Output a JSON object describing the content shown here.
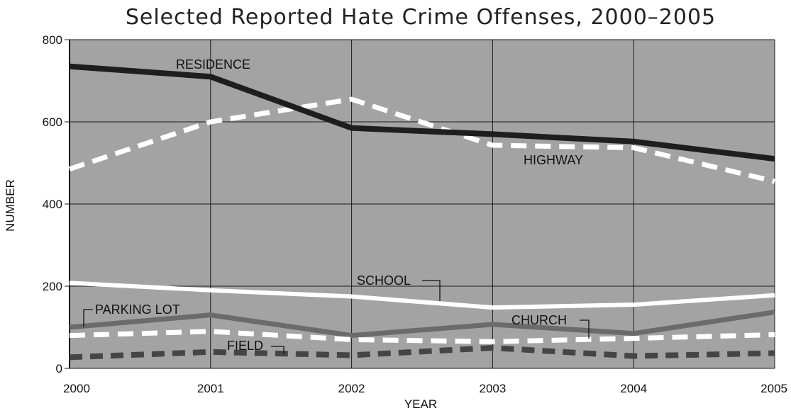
{
  "chart_data": {
    "type": "line",
    "title": "Selected Reported Hate Crime Offenses, 2000–2005",
    "xlabel": "YEAR",
    "ylabel": "NUMBER",
    "x": [
      2000,
      2001,
      2002,
      2003,
      2004,
      2005
    ],
    "xlim": [
      2000,
      2005
    ],
    "ylim": [
      0,
      800
    ],
    "yticks": [
      0,
      200,
      400,
      600,
      800
    ],
    "grid": true,
    "legend": "none",
    "series": [
      {
        "name": "RESIDENCE",
        "values": [
          735,
          710,
          585,
          570,
          552,
          510
        ],
        "color": "#1e1e1e",
        "style": "solid"
      },
      {
        "name": "HIGHWAY",
        "values": [
          485,
          600,
          655,
          543,
          537,
          455
        ],
        "color": "#ffffff",
        "style": "dashed"
      },
      {
        "name": "SCHOOL",
        "values": [
          208,
          190,
          175,
          148,
          155,
          178
        ],
        "color": "#ffffff",
        "style": "solid"
      },
      {
        "name": "PARKING LOT",
        "values": [
          100,
          130,
          80,
          107,
          85,
          137
        ],
        "color": "#6b6b6b",
        "style": "solid"
      },
      {
        "name": "CHURCH",
        "values": [
          80,
          90,
          70,
          65,
          73,
          82
        ],
        "color": "#ffffff",
        "style": "dashed"
      },
      {
        "name": "FIELD",
        "values": [
          27,
          40,
          32,
          50,
          30,
          37
        ],
        "color": "#454545",
        "style": "dashed"
      }
    ]
  },
  "colors": {
    "plot_background": "#a3a3a3",
    "grid": "#1a1a1a",
    "axis": "#111111"
  }
}
